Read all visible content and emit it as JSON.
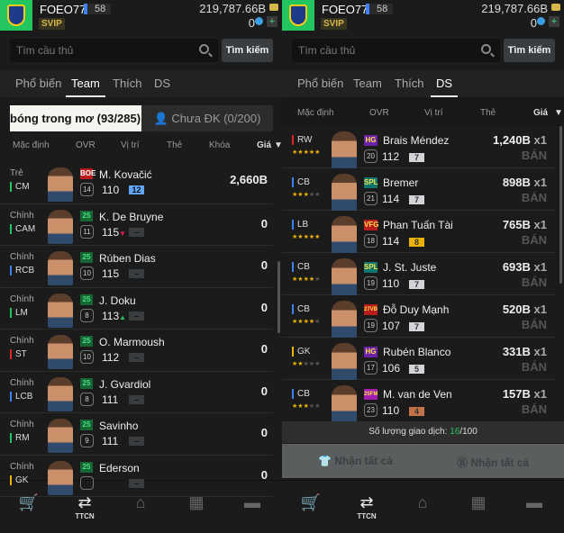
{
  "header": {
    "username": "FOEO771",
    "level": "58",
    "vip": "SVIP",
    "coins": "219,787.66B",
    "fc": "0"
  },
  "search": {
    "placeholder": "Tìm cầu thủ",
    "button": "Tìm kiếm"
  },
  "tabs": [
    "Phổ biến",
    "Team",
    "Thích",
    "DS"
  ],
  "left": {
    "active_tab": "Team",
    "subtabs": {
      "registered": "bóng trong mơ",
      "registered_count": "(93/285)",
      "unregistered": "Chưa ĐK (0/200)"
    },
    "columns": [
      "Mặc định",
      "OVR",
      "Vị trí",
      "Thẻ",
      "Khóa",
      "Giá"
    ],
    "players": [
      {
        "role": "Trẻ",
        "pos": "CM",
        "posColor": "#22c55e",
        "club": "BOE",
        "clubColor": "#b91c1c",
        "name": "M. Kovačić",
        "grade": "14",
        "ovr": "110",
        "level": "12",
        "levelColor": "#60a5fa",
        "price": "2,660B",
        "arrow": ""
      },
      {
        "role": "Chính",
        "pos": "CAM",
        "posColor": "#22c55e",
        "club": "25",
        "clubColor": "#166534",
        "name": "K. De Bruyne",
        "grade": "11",
        "ovr": "115",
        "level": "–",
        "levelColor": "#3a3d40",
        "price": "0",
        "arrow": "down"
      },
      {
        "role": "Chính",
        "pos": "RCB",
        "posColor": "#3b82f6",
        "club": "25",
        "clubColor": "#166534",
        "name": "Rúben Dias",
        "grade": "10",
        "ovr": "115",
        "level": "–",
        "levelColor": "#3a3d40",
        "price": "0",
        "arrow": ""
      },
      {
        "role": "Chính",
        "pos": "LM",
        "posColor": "#22c55e",
        "club": "25",
        "clubColor": "#166534",
        "name": "J. Doku",
        "grade": "8",
        "ovr": "113",
        "level": "–",
        "levelColor": "#3a3d40",
        "price": "0",
        "arrow": "up"
      },
      {
        "role": "Chính",
        "pos": "ST",
        "posColor": "#dc2626",
        "club": "25",
        "clubColor": "#166534",
        "name": "O. Marmoush",
        "grade": "10",
        "ovr": "112",
        "level": "–",
        "levelColor": "#3a3d40",
        "price": "0",
        "arrow": ""
      },
      {
        "role": "Chính",
        "pos": "LCB",
        "posColor": "#3b82f6",
        "club": "25",
        "clubColor": "#166534",
        "name": "J. Gvardiol",
        "grade": "8",
        "ovr": "111",
        "level": "–",
        "levelColor": "#3a3d40",
        "price": "0",
        "arrow": ""
      },
      {
        "role": "Chính",
        "pos": "RM",
        "posColor": "#22c55e",
        "club": "25",
        "clubColor": "#166534",
        "name": "Savinho",
        "grade": "9",
        "ovr": "111",
        "level": "–",
        "levelColor": "#3a3d40",
        "price": "0",
        "arrow": ""
      },
      {
        "role": "Chính",
        "pos": "GK",
        "posColor": "#eab308",
        "club": "25",
        "clubColor": "#166534",
        "name": "Ederson",
        "grade": "",
        "ovr": "",
        "level": "–",
        "levelColor": "#3a3d40",
        "price": "0",
        "arrow": ""
      }
    ]
  },
  "right": {
    "active_tab": "DS",
    "columns": [
      "Mặc định",
      "OVR",
      "Vị trí",
      "Thẻ",
      "Giá"
    ],
    "sell_label": "BÁN",
    "players": [
      {
        "pos": "RW",
        "posColor": "#dc2626",
        "stars": 5,
        "club": "HG",
        "clubColor": "#6b21a8",
        "name": "Brais Méndez",
        "grade": "20",
        "ovr": "112",
        "level": "7",
        "levelColor": "#d4d4d8",
        "price": "1,240B",
        "qty": "x1"
      },
      {
        "pos": "CB",
        "posColor": "#3b82f6",
        "stars": 3,
        "club": "SPL",
        "clubColor": "#0f766e",
        "name": "Bremer",
        "grade": "21",
        "ovr": "114",
        "level": "7",
        "levelColor": "#d4d4d8",
        "price": "898B",
        "qty": "x1"
      },
      {
        "pos": "LB",
        "posColor": "#3b82f6",
        "stars": 5,
        "club": "VFG",
        "clubColor": "#b91c1c",
        "name": "Phan Tuấn Tài",
        "grade": "18",
        "ovr": "114",
        "level": "8",
        "levelColor": "#eab308",
        "price": "765B",
        "qty": "x1"
      },
      {
        "pos": "CB",
        "posColor": "#3b82f6",
        "stars": 4,
        "club": "SPL",
        "clubColor": "#0f766e",
        "name": "J. St. Juste",
        "grade": "19",
        "ovr": "110",
        "level": "7",
        "levelColor": "#d4d4d8",
        "price": "693B",
        "qty": "x1"
      },
      {
        "pos": "CB",
        "posColor": "#3b82f6",
        "stars": 4,
        "club": "27VB",
        "clubColor": "#b91c1c",
        "name": "Đỗ Duy Mạnh",
        "grade": "19",
        "ovr": "107",
        "level": "7",
        "levelColor": "#d4d4d8",
        "price": "520B",
        "qty": "x1"
      },
      {
        "pos": "GK",
        "posColor": "#eab308",
        "stars": 2,
        "club": "HG",
        "clubColor": "#6b21a8",
        "name": "Rubén Blanco",
        "grade": "17",
        "ovr": "106",
        "level": "5",
        "levelColor": "#d4d4d8",
        "price": "331B",
        "qty": "x1"
      },
      {
        "pos": "CB",
        "posColor": "#3b82f6",
        "stars": 3,
        "club": "25FM",
        "clubColor": "#a21caf",
        "name": "M. van de Ven",
        "grade": "23",
        "ovr": "110",
        "level": "4",
        "levelColor": "#c2734a",
        "price": "157B",
        "qty": "x1"
      }
    ],
    "trade_count_label": "Số lượng giao dịch: ",
    "trade_count": "16",
    "trade_max": "/100",
    "claim_players": "Nhận tất cả",
    "claim_coins": "Nhận tất cả"
  },
  "nav": [
    {
      "icon": "cart-icon",
      "label": ""
    },
    {
      "icon": "transfer-icon",
      "label": "TTCN"
    },
    {
      "icon": "home-icon",
      "label": ""
    },
    {
      "icon": "pitch-icon",
      "label": ""
    },
    {
      "icon": "bag-icon",
      "label": ""
    }
  ],
  "colors": {
    "accent_green": "#22c55e",
    "bg": "#1b1b1b"
  }
}
